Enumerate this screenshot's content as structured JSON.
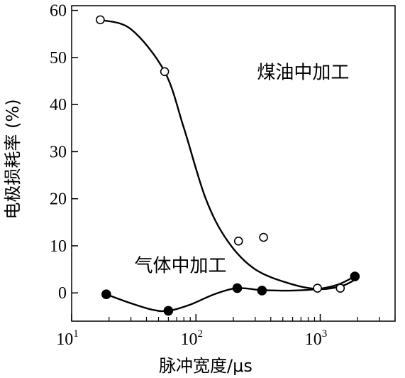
{
  "chart_data": {
    "type": "scatter",
    "xlabel": "脉冲宽度/μs",
    "ylabel": "电极损耗率 (%)",
    "x_scale": "log",
    "xlim": [
      10,
      4000
    ],
    "ylim": [
      -6,
      61
    ],
    "x_ticks": [
      {
        "value": 10,
        "base": "10",
        "exp": "1"
      },
      {
        "value": 100,
        "base": "10",
        "exp": "2"
      },
      {
        "value": 1000,
        "base": "10",
        "exp": "3"
      }
    ],
    "y_ticks": [
      0,
      10,
      20,
      30,
      40,
      50,
      60
    ],
    "grid": false,
    "series": [
      {
        "name": "煤油中加工",
        "marker": "open-circle",
        "points": [
          {
            "x": 17,
            "y": 58
          },
          {
            "x": 56,
            "y": 47
          },
          {
            "x": 220,
            "y": 11
          },
          {
            "x": 350,
            "y": 11.8
          },
          {
            "x": 950,
            "y": 1
          },
          {
            "x": 1450,
            "y": 1
          }
        ],
        "curve": [
          [
            17,
            58
          ],
          [
            30,
            56
          ],
          [
            56,
            47
          ],
          [
            80,
            35
          ],
          [
            120,
            20
          ],
          [
            180,
            11
          ],
          [
            300,
            5
          ],
          [
            600,
            1.8
          ],
          [
            1000,
            0.8
          ],
          [
            1500,
            1.5
          ],
          [
            1900,
            2.8
          ]
        ]
      },
      {
        "name": "气体中加工",
        "marker": "filled-circle",
        "points": [
          {
            "x": 19,
            "y": -0.3
          },
          {
            "x": 60,
            "y": -3.8
          },
          {
            "x": 215,
            "y": 1
          },
          {
            "x": 340,
            "y": 0.5
          },
          {
            "x": 1900,
            "y": 3.5
          }
        ],
        "curve": [
          [
            19,
            -0.3
          ],
          [
            30,
            -2.2
          ],
          [
            45,
            -3.6
          ],
          [
            60,
            -3.8
          ],
          [
            90,
            -2.5
          ],
          [
            140,
            -0.3
          ],
          [
            215,
            1
          ],
          [
            340,
            0.6
          ],
          [
            600,
            0.5
          ],
          [
            1000,
            0.9
          ],
          [
            1400,
            1.8
          ],
          [
            1900,
            3.5
          ]
        ]
      }
    ],
    "annotations": [
      {
        "text": "煤油中加工",
        "x": 310,
        "y": 45.5
      },
      {
        "text": "气体中加工",
        "x": 32,
        "y": 4.5
      }
    ]
  }
}
